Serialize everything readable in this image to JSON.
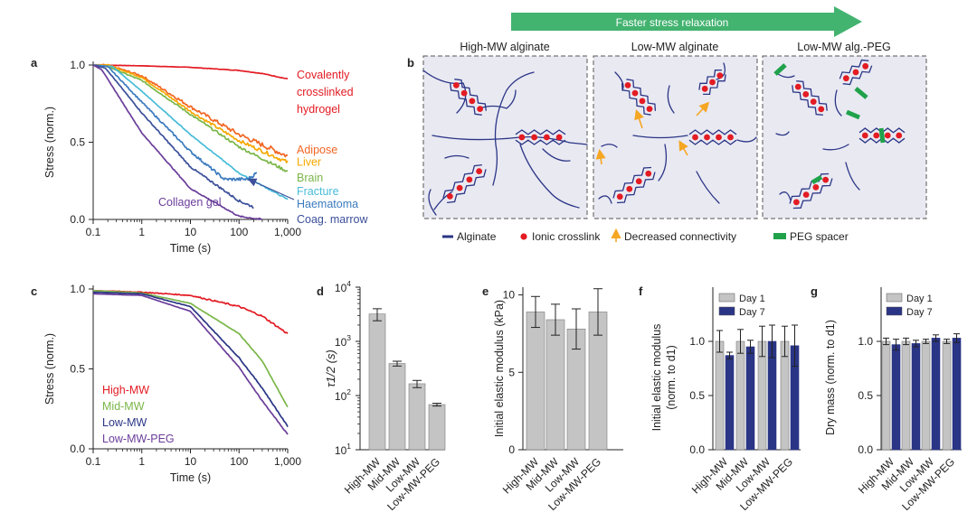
{
  "colors": {
    "axis": "#222222",
    "bar_gray": "#c4c4c4",
    "bar_blue": "#2a3585",
    "alginate": "#2a3585",
    "crosslink": "#e31b23",
    "arrow_orange": "#f5a623",
    "peg": "#1fa24a",
    "banner": "#43b370",
    "scheme_bg": "#e9e9f2"
  },
  "panel_labels": {
    "a": "a",
    "b": "b",
    "c": "c",
    "d": "d",
    "e": "e",
    "f": "f",
    "g": "g"
  },
  "banner": {
    "label": "Faster stress relaxation"
  },
  "scheme": {
    "titles": [
      "High-MW alginate",
      "Low-MW alginate",
      "Low-MW alg.-PEG"
    ],
    "legend": [
      {
        "label": "Alginate",
        "icon": "alginate-line-icon"
      },
      {
        "label": "Ionic crosslink",
        "icon": "crosslink-dot-icon"
      },
      {
        "label": "Decreased connectivity",
        "icon": "up-arrow-icon"
      },
      {
        "label": "PEG spacer",
        "icon": "peg-bar-icon"
      }
    ]
  },
  "chart_data": [
    {
      "id": "a",
      "type": "line",
      "xscale": "log",
      "xlim": [
        0.1,
        1000
      ],
      "ylim": [
        0,
        1
      ],
      "xticks": [
        "0.1",
        "1",
        "10",
        "100",
        "1,000"
      ],
      "yticks": [
        "0.0",
        "0.5",
        "1.0"
      ],
      "xlabel": "Time (s)",
      "ylabel": "Stress (norm.)",
      "annotation": "Collagen gel",
      "series": [
        {
          "name": "Covalently crosslinked hydrogel",
          "label_lines": [
            "Covalently",
            "crosslinked",
            "hydrogel"
          ],
          "color": "#e31b23",
          "x": [
            0.1,
            1,
            10,
            100,
            300,
            1000
          ],
          "y": [
            1.0,
            0.995,
            0.985,
            0.965,
            0.945,
            0.91
          ],
          "noise": 0.002,
          "label_y": 0.91
        },
        {
          "name": "Adipose",
          "color": "#f26522",
          "x": [
            0.1,
            0.2,
            1,
            10,
            100,
            1000
          ],
          "y": [
            1.0,
            1.0,
            0.93,
            0.73,
            0.55,
            0.41
          ],
          "noise": 0.018,
          "label_y": 0.45
        },
        {
          "name": "Liver",
          "color": "#f6a800",
          "x": [
            0.1,
            0.2,
            1,
            10,
            100,
            1000
          ],
          "y": [
            1.0,
            1.0,
            0.92,
            0.7,
            0.51,
            0.37
          ],
          "noise": 0.013,
          "label_y": 0.37
        },
        {
          "name": "Brain",
          "color": "#7ab648",
          "x": [
            0.1,
            0.2,
            1,
            10,
            100,
            1000
          ],
          "y": [
            1.0,
            0.99,
            0.9,
            0.68,
            0.47,
            0.31
          ],
          "noise": 0.01,
          "label_y": 0.27
        },
        {
          "name": "Fracture",
          "color": "#47bcd8",
          "x": [
            0.1,
            0.25,
            1,
            10,
            100,
            1000
          ],
          "y": [
            1.0,
            0.99,
            0.83,
            0.55,
            0.3,
            0.13
          ],
          "noise": 0.004,
          "label_y": 0.18
        },
        {
          "name": "Haematoma",
          "color": "#3b7bbf",
          "x": [
            0.1,
            0.2,
            1,
            10,
            50,
            100,
            150,
            230
          ],
          "y": [
            1.0,
            0.99,
            0.76,
            0.44,
            0.26,
            0.26,
            0.26,
            0.3
          ],
          "noise": 0.012,
          "label_y": 0.1
        },
        {
          "name": "Coag. marrow",
          "color": "#3b4f9a",
          "x": [
            0.1,
            0.18,
            1,
            10,
            100,
            200
          ],
          "y": [
            1.0,
            0.98,
            0.69,
            0.34,
            0.12,
            0.08
          ],
          "noise": 0.008,
          "label_y": 0.0
        },
        {
          "name": "Collagen gel",
          "color": "#6a3d9a",
          "x": [
            0.1,
            0.15,
            1,
            10,
            100,
            300
          ],
          "y": [
            1.0,
            0.97,
            0.56,
            0.2,
            0.02,
            0.0
          ],
          "noise": 0.005,
          "label_y": null
        }
      ]
    },
    {
      "id": "c",
      "type": "line",
      "xscale": "log",
      "xlim": [
        0.1,
        1000
      ],
      "ylim": [
        0,
        1
      ],
      "xticks": [
        "0.1",
        "1",
        "10",
        "100",
        "1,000"
      ],
      "yticks": [
        "0.0",
        "0.5",
        "1.0"
      ],
      "xlabel": "Time (s)",
      "ylabel": "Stress (norm.)",
      "series": [
        {
          "name": "High-MW",
          "color": "#e31b23",
          "x": [
            0.1,
            1,
            10,
            100,
            300,
            1000
          ],
          "y": [
            0.99,
            0.98,
            0.96,
            0.89,
            0.83,
            0.72
          ],
          "noise": 0.006
        },
        {
          "name": "Mid-MW",
          "color": "#7ab648",
          "x": [
            0.1,
            1,
            10,
            100,
            300,
            1000
          ],
          "y": [
            0.99,
            0.975,
            0.91,
            0.72,
            0.55,
            0.26
          ],
          "noise": 0.002
        },
        {
          "name": "Low-MW",
          "color": "#2a3585",
          "x": [
            0.1,
            1,
            10,
            100,
            300,
            1000
          ],
          "y": [
            0.98,
            0.97,
            0.89,
            0.57,
            0.38,
            0.14
          ],
          "noise": 0.003
        },
        {
          "name": "Low-MW-PEG",
          "color": "#6a3d9a",
          "x": [
            0.1,
            1,
            10,
            100,
            300,
            1000
          ],
          "y": [
            0.97,
            0.96,
            0.86,
            0.51,
            0.3,
            0.09
          ],
          "noise": 0.002
        }
      ]
    },
    {
      "id": "d",
      "type": "bar",
      "yscale": "log",
      "ylim": [
        10,
        10000
      ],
      "ylabel": "τ1/2 (s)",
      "ytick_bases": [
        "10",
        "10",
        "10",
        "10"
      ],
      "ytick_exps": [
        "1",
        "2",
        "3",
        "4"
      ],
      "categories": [
        "High-MW",
        "Mid-MW",
        "Low-MW",
        "Low-MW-PEG"
      ],
      "values": [
        3200,
        390,
        165,
        68
      ],
      "errors": [
        800,
        40,
        25,
        4
      ]
    },
    {
      "id": "e",
      "type": "bar",
      "ylim": [
        0,
        10.5
      ],
      "ylabel": "Initial elastic modulus (kPa)",
      "yticks": [
        "0",
        "5",
        "10"
      ],
      "categories": [
        "High-MW",
        "Mid-MW",
        "Low-MW",
        "Low-MW-PEG"
      ],
      "values": [
        8.9,
        8.4,
        7.8,
        8.9
      ],
      "errors": [
        1.0,
        1.0,
        1.3,
        1.5
      ]
    },
    {
      "id": "f",
      "type": "bar",
      "ylim": [
        0,
        1.5
      ],
      "ylabel": "Initial elastic modulus (norm. to d1)",
      "ylabel_lines": [
        "Initial elastic modulus",
        "(norm. to d1)"
      ],
      "yticks": [
        "0.0",
        "0.5",
        "1.0"
      ],
      "categories": [
        "High-MW",
        "Mid-MW",
        "Low-MW",
        "Low-MW-PEG"
      ],
      "series": [
        {
          "name": "Day 1",
          "color": "#c4c4c4",
          "values": [
            1.0,
            1.0,
            1.0,
            1.0
          ],
          "errors": [
            0.1,
            0.11,
            0.14,
            0.14
          ]
        },
        {
          "name": "Day 7",
          "color": "#2a3585",
          "values": [
            0.87,
            0.95,
            1.0,
            0.96
          ],
          "errors": [
            0.03,
            0.06,
            0.15,
            0.19
          ]
        }
      ]
    },
    {
      "id": "g",
      "type": "bar",
      "ylim": [
        0,
        1.5
      ],
      "ylabel": "Dry mass (norm. to d1)",
      "yticks": [
        "0.0",
        "0.5",
        "1.0"
      ],
      "categories": [
        "High-MW",
        "Mid-MW",
        "Low-MW",
        "Low-MW-PEG"
      ],
      "series": [
        {
          "name": "Day 1",
          "color": "#c4c4c4",
          "values": [
            1.0,
            1.0,
            1.0,
            1.0
          ],
          "errors": [
            0.03,
            0.03,
            0.02,
            0.02
          ]
        },
        {
          "name": "Day 7",
          "color": "#2a3585",
          "values": [
            0.97,
            0.98,
            1.03,
            1.03
          ],
          "errors": [
            0.05,
            0.03,
            0.03,
            0.04
          ]
        }
      ]
    }
  ]
}
